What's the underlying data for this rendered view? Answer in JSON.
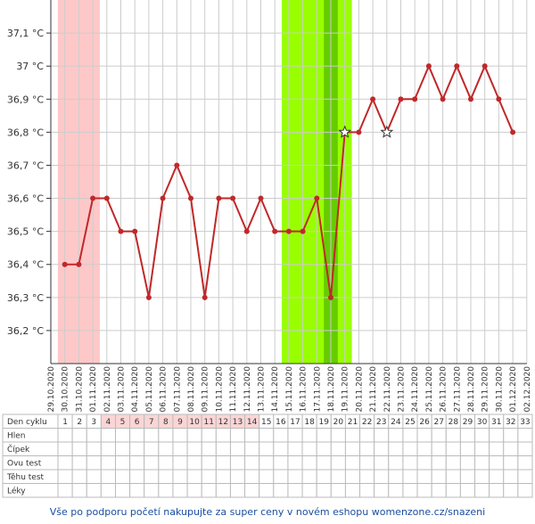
{
  "chart_data": {
    "type": "line",
    "categories": [
      "29.10.2020",
      "30.10.2020",
      "31.10.2020",
      "01.11.2020",
      "02.11.2020",
      "03.11.2020",
      "04.11.2020",
      "05.11.2020",
      "06.11.2020",
      "07.11.2020",
      "08.11.2020",
      "09.11.2020",
      "10.11.2020",
      "11.11.2020",
      "12.11.2020",
      "13.11.2020",
      "14.11.2020",
      "15.11.2020",
      "16.11.2020",
      "17.11.2020",
      "18.11.2020",
      "19.11.2020",
      "20.11.2020",
      "21.11.2020",
      "22.11.2020",
      "23.11.2020",
      "24.11.2020",
      "25.11.2020",
      "26.11.2020",
      "27.11.2020",
      "28.11.2020",
      "29.11.2020",
      "30.11.2020",
      "01.12.2020",
      "02.12.2020"
    ],
    "series": [
      {
        "color": "#c0282a",
        "values": [
          null,
          36.4,
          36.4,
          36.6,
          36.6,
          36.5,
          36.5,
          36.3,
          36.6,
          36.7,
          36.6,
          36.3,
          36.6,
          36.6,
          36.5,
          36.6,
          36.5,
          36.5,
          36.5,
          36.6,
          36.3,
          36.8,
          36.8,
          36.9,
          36.8,
          36.9,
          36.9,
          37.0,
          36.9,
          37.0,
          36.9,
          37.0,
          36.9,
          36.8,
          null
        ]
      }
    ],
    "star_points": [
      21,
      24
    ],
    "bands": [
      {
        "from": 1,
        "to": 3,
        "color": "#ffc8c8"
      },
      {
        "from": 17,
        "to": 21,
        "color": "#99ff00"
      },
      {
        "from": 20,
        "to": 20,
        "color": "#66cc00"
      }
    ],
    "ylim": [
      36.1,
      37.2
    ],
    "yticks": [
      {
        "value": 36.2,
        "label": "36,2 °C"
      },
      {
        "value": 36.3,
        "label": "36,3 °C"
      },
      {
        "value": 36.4,
        "label": "36,4 °C"
      },
      {
        "value": 36.5,
        "label": "36,5 °C"
      },
      {
        "value": 36.6,
        "label": "36,6 °C"
      },
      {
        "value": 36.7,
        "label": "36,7 °C"
      },
      {
        "value": 36.8,
        "label": "36,8 °C"
      },
      {
        "value": 36.9,
        "label": "36,9 °C"
      },
      {
        "value": 37.0,
        "label": "37 °C"
      },
      {
        "value": 37.1,
        "label": "37,1 °C"
      }
    ],
    "grid": true
  },
  "table": {
    "row_labels": [
      "Den cyklu",
      "Hlen",
      "Čípek",
      "Ovu test",
      "Těhu test",
      "Léky"
    ],
    "cycle_days": [
      1,
      2,
      3,
      4,
      5,
      6,
      7,
      8,
      9,
      10,
      11,
      12,
      13,
      14,
      15,
      16,
      17,
      18,
      19,
      20,
      21,
      22,
      23,
      24,
      25,
      26,
      27,
      28,
      29,
      30,
      31,
      32,
      33
    ],
    "highlight_from": 4,
    "highlight_to": 14
  },
  "footer": "Vše po podporu početí nakupujte za super ceny v novém eshopu womenzone.cz/snazeni"
}
